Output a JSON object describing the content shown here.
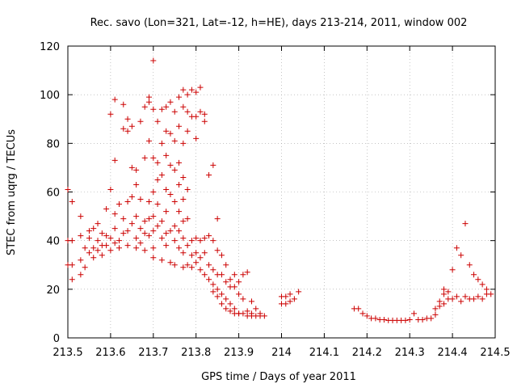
{
  "chart_data": {
    "type": "scatter",
    "title": "Rec. savo (Lon=321, Lat=-12, h=HE), days 213-214, 2011, window 002",
    "xlabel": "GPS time / Days of year 2011",
    "ylabel": "STEC from uqrg / TECUs",
    "xlim": [
      213.5,
      214.5
    ],
    "ylim": [
      0,
      120
    ],
    "xticks": [
      "213.5",
      "213.6",
      "213.7",
      "213.8",
      "213.9",
      "214",
      "214.1",
      "214.2",
      "214.3",
      "214.4",
      "214.5"
    ],
    "yticks": [
      "0",
      "20",
      "40",
      "60",
      "80",
      "100",
      "120"
    ],
    "grid": "dotted",
    "marker": "plus",
    "color": "#cc0000",
    "series": [
      {
        "name": "",
        "points": [
          [
            213.5,
            61
          ],
          [
            213.5,
            40
          ],
          [
            213.5,
            30
          ],
          [
            213.51,
            24
          ],
          [
            213.51,
            56
          ],
          [
            213.51,
            40
          ],
          [
            213.51,
            30
          ],
          [
            213.53,
            50
          ],
          [
            213.53,
            42
          ],
          [
            213.53,
            32
          ],
          [
            213.53,
            26
          ],
          [
            213.54,
            37
          ],
          [
            213.54,
            29
          ],
          [
            213.55,
            44
          ],
          [
            213.55,
            41
          ],
          [
            213.55,
            35
          ],
          [
            213.56,
            45
          ],
          [
            213.56,
            37
          ],
          [
            213.56,
            33
          ],
          [
            213.57,
            47
          ],
          [
            213.57,
            40
          ],
          [
            213.57,
            36
          ],
          [
            213.58,
            43
          ],
          [
            213.58,
            38
          ],
          [
            213.58,
            34
          ],
          [
            213.59,
            53
          ],
          [
            213.59,
            42
          ],
          [
            213.59,
            38
          ],
          [
            213.6,
            92
          ],
          [
            213.6,
            61
          ],
          [
            213.6,
            41
          ],
          [
            213.6,
            36
          ],
          [
            213.61,
            98
          ],
          [
            213.61,
            73
          ],
          [
            213.61,
            51
          ],
          [
            213.61,
            45
          ],
          [
            213.61,
            39
          ],
          [
            213.62,
            55
          ],
          [
            213.62,
            40
          ],
          [
            213.62,
            37
          ],
          [
            213.63,
            96
          ],
          [
            213.63,
            86
          ],
          [
            213.63,
            49
          ],
          [
            213.63,
            43
          ],
          [
            213.64,
            90
          ],
          [
            213.64,
            85
          ],
          [
            213.64,
            56
          ],
          [
            213.64,
            44
          ],
          [
            213.64,
            38
          ],
          [
            213.65,
            87
          ],
          [
            213.65,
            70
          ],
          [
            213.65,
            58
          ],
          [
            213.65,
            47
          ],
          [
            213.66,
            69
          ],
          [
            213.66,
            63
          ],
          [
            213.66,
            50
          ],
          [
            213.66,
            41
          ],
          [
            213.66,
            37
          ],
          [
            213.67,
            89
          ],
          [
            213.67,
            57
          ],
          [
            213.67,
            45
          ],
          [
            213.67,
            39
          ],
          [
            213.68,
            95
          ],
          [
            213.68,
            74
          ],
          [
            213.68,
            48
          ],
          [
            213.68,
            43
          ],
          [
            213.68,
            36
          ],
          [
            213.69,
            99
          ],
          [
            213.69,
            97
          ],
          [
            213.69,
            81
          ],
          [
            213.69,
            56
          ],
          [
            213.69,
            49
          ],
          [
            213.69,
            42
          ],
          [
            213.7,
            114
          ],
          [
            213.7,
            94
          ],
          [
            213.7,
            74
          ],
          [
            213.7,
            60
          ],
          [
            213.7,
            50
          ],
          [
            213.7,
            44
          ],
          [
            213.7,
            37
          ],
          [
            213.7,
            33
          ],
          [
            213.71,
            89
          ],
          [
            213.71,
            72
          ],
          [
            213.71,
            65
          ],
          [
            213.71,
            55
          ],
          [
            213.71,
            46
          ],
          [
            213.72,
            94
          ],
          [
            213.72,
            80
          ],
          [
            213.72,
            67
          ],
          [
            213.72,
            48
          ],
          [
            213.72,
            41
          ],
          [
            213.72,
            32
          ],
          [
            213.73,
            95
          ],
          [
            213.73,
            85
          ],
          [
            213.73,
            75
          ],
          [
            213.73,
            61
          ],
          [
            213.73,
            52
          ],
          [
            213.73,
            43
          ],
          [
            213.73,
            38
          ],
          [
            213.74,
            97
          ],
          [
            213.74,
            84
          ],
          [
            213.74,
            71
          ],
          [
            213.74,
            59
          ],
          [
            213.74,
            44
          ],
          [
            213.74,
            31
          ],
          [
            213.75,
            93
          ],
          [
            213.75,
            81
          ],
          [
            213.75,
            69
          ],
          [
            213.75,
            56
          ],
          [
            213.75,
            46
          ],
          [
            213.75,
            40
          ],
          [
            213.75,
            30
          ],
          [
            213.76,
            99
          ],
          [
            213.76,
            87
          ],
          [
            213.76,
            72
          ],
          [
            213.76,
            63
          ],
          [
            213.76,
            52
          ],
          [
            213.76,
            44
          ],
          [
            213.76,
            37
          ],
          [
            213.77,
            102
          ],
          [
            213.77,
            95
          ],
          [
            213.77,
            80
          ],
          [
            213.77,
            66
          ],
          [
            213.77,
            57
          ],
          [
            213.77,
            48
          ],
          [
            213.77,
            41
          ],
          [
            213.77,
            35
          ],
          [
            213.77,
            29
          ],
          [
            213.78,
            100
          ],
          [
            213.78,
            93
          ],
          [
            213.78,
            85
          ],
          [
            213.78,
            61
          ],
          [
            213.78,
            49
          ],
          [
            213.78,
            38
          ],
          [
            213.78,
            30
          ],
          [
            213.79,
            102
          ],
          [
            213.79,
            91
          ],
          [
            213.79,
            40
          ],
          [
            213.79,
            34
          ],
          [
            213.79,
            29
          ],
          [
            213.8,
            101
          ],
          [
            213.8,
            91
          ],
          [
            213.8,
            82
          ],
          [
            213.8,
            41
          ],
          [
            213.8,
            35
          ],
          [
            213.8,
            31
          ],
          [
            213.81,
            103
          ],
          [
            213.81,
            93
          ],
          [
            213.81,
            40
          ],
          [
            213.81,
            33
          ],
          [
            213.81,
            28
          ],
          [
            213.82,
            92
          ],
          [
            213.82,
            89
          ],
          [
            213.82,
            41
          ],
          [
            213.82,
            35
          ],
          [
            213.82,
            26
          ],
          [
            213.83,
            67
          ],
          [
            213.83,
            42
          ],
          [
            213.83,
            30
          ],
          [
            213.83,
            24
          ],
          [
            213.84,
            71
          ],
          [
            213.84,
            40
          ],
          [
            213.84,
            28
          ],
          [
            213.84,
            22
          ],
          [
            213.84,
            19
          ],
          [
            213.85,
            49
          ],
          [
            213.85,
            36
          ],
          [
            213.85,
            26
          ],
          [
            213.85,
            20
          ],
          [
            213.85,
            17
          ],
          [
            213.86,
            34
          ],
          [
            213.86,
            26
          ],
          [
            213.86,
            18
          ],
          [
            213.86,
            14
          ],
          [
            213.87,
            30
          ],
          [
            213.87,
            23
          ],
          [
            213.87,
            16
          ],
          [
            213.87,
            12
          ],
          [
            213.88,
            24
          ],
          [
            213.88,
            21
          ],
          [
            213.88,
            14
          ],
          [
            213.88,
            11
          ],
          [
            213.89,
            26
          ],
          [
            213.89,
            21
          ],
          [
            213.89,
            12
          ],
          [
            213.89,
            10
          ],
          [
            213.9,
            23
          ],
          [
            213.9,
            18
          ],
          [
            213.9,
            10
          ],
          [
            213.9,
            10
          ],
          [
            213.91,
            26
          ],
          [
            213.91,
            16
          ],
          [
            213.91,
            10
          ],
          [
            213.92,
            27
          ],
          [
            213.92,
            11
          ],
          [
            213.92,
            9
          ],
          [
            213.93,
            15
          ],
          [
            213.93,
            10
          ],
          [
            213.93,
            9
          ],
          [
            213.94,
            12
          ],
          [
            213.94,
            9
          ],
          [
            213.95,
            10
          ],
          [
            213.95,
            9
          ],
          [
            213.96,
            9
          ],
          [
            214.0,
            17
          ],
          [
            214.0,
            14
          ],
          [
            214.01,
            17
          ],
          [
            214.01,
            14
          ],
          [
            214.02,
            18
          ],
          [
            214.02,
            15
          ],
          [
            214.03,
            16
          ],
          [
            214.04,
            19
          ],
          [
            214.17,
            12
          ],
          [
            214.18,
            12
          ],
          [
            214.19,
            10
          ],
          [
            214.2,
            9
          ],
          [
            214.21,
            8
          ],
          [
            214.22,
            8
          ],
          [
            214.23,
            7.5
          ],
          [
            214.24,
            7.5
          ],
          [
            214.25,
            7.2
          ],
          [
            214.26,
            7.2
          ],
          [
            214.27,
            7.2
          ],
          [
            214.28,
            7.2
          ],
          [
            214.29,
            7.2
          ],
          [
            214.3,
            7.5
          ],
          [
            214.31,
            10
          ],
          [
            214.32,
            7.5
          ],
          [
            214.33,
            7.5
          ],
          [
            214.34,
            8
          ],
          [
            214.35,
            8
          ],
          [
            214.36,
            9.5
          ],
          [
            214.36,
            12
          ],
          [
            214.37,
            15
          ],
          [
            214.37,
            13
          ],
          [
            214.38,
            20
          ],
          [
            214.38,
            18
          ],
          [
            214.38,
            14
          ],
          [
            214.39,
            19
          ],
          [
            214.39,
            16
          ],
          [
            214.4,
            28
          ],
          [
            214.4,
            16
          ],
          [
            214.41,
            37
          ],
          [
            214.41,
            17
          ],
          [
            214.42,
            34
          ],
          [
            214.42,
            15
          ],
          [
            214.43,
            47
          ],
          [
            214.43,
            17
          ],
          [
            214.44,
            30
          ],
          [
            214.44,
            16
          ],
          [
            214.45,
            26
          ],
          [
            214.45,
            16
          ],
          [
            214.46,
            24
          ],
          [
            214.46,
            17
          ],
          [
            214.47,
            22
          ],
          [
            214.47,
            16
          ],
          [
            214.48,
            20
          ],
          [
            214.48,
            18
          ],
          [
            214.49,
            18
          ]
        ]
      }
    ]
  }
}
